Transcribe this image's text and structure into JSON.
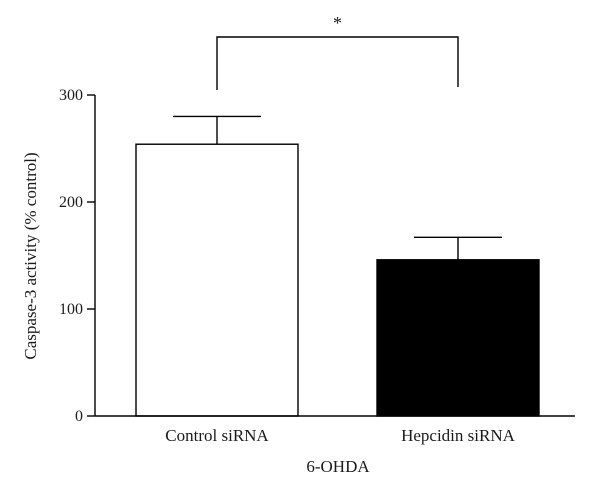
{
  "chart_data": {
    "type": "bar",
    "categories": [
      "Control siRNA",
      "Hepcidin siRNA"
    ],
    "values": [
      254,
      146
    ],
    "error_upper": [
      26,
      21
    ],
    "bar_colors": [
      "#ffffff",
      "#000000"
    ],
    "xlabel": "6-OHDA",
    "ylabel": "Caspase-3 activity (% control)",
    "ylim": [
      0,
      300
    ],
    "yticks": [
      "0",
      "100",
      "200",
      "300"
    ],
    "significance": {
      "between": [
        0,
        1
      ],
      "label": "*"
    },
    "grid": false,
    "legend": "none"
  }
}
